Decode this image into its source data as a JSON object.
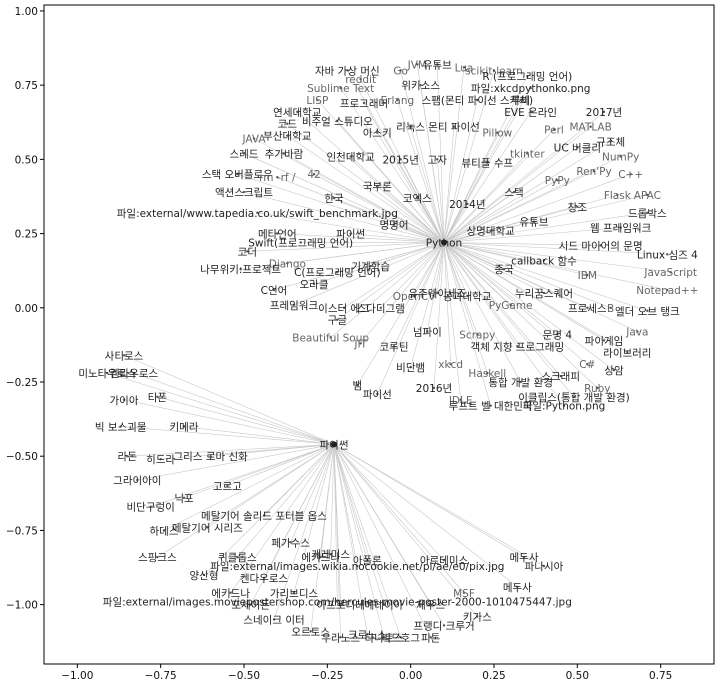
{
  "chart_data": {
    "type": "network",
    "title": "",
    "xlabel": "",
    "ylabel": "",
    "xlim": [
      -1.1,
      0.91
    ],
    "ylim": [
      -1.2,
      1.02
    ],
    "xticks": [
      -1.0,
      -0.75,
      -0.5,
      -0.25,
      0.0,
      0.25,
      0.5,
      0.75
    ],
    "yticks": [
      -1.0,
      -0.75,
      -0.5,
      -0.25,
      0.0,
      0.25,
      0.5,
      0.75,
      1.0
    ],
    "xtick_labels": [
      "−1.00",
      "−0.75",
      "−0.50",
      "−0.25",
      "0.00",
      "0.25",
      "0.50",
      "0.75"
    ],
    "ytick_labels": [
      "−1.00",
      "−0.75",
      "−0.50",
      "−0.25",
      "0.00",
      "0.25",
      "0.50",
      "0.75",
      "1.00"
    ],
    "hubs": [
      {
        "label": "Python",
        "x": 0.1,
        "y": 0.22
      },
      {
        "label": "파이썬",
        "x": -0.23,
        "y": -0.46
      }
    ],
    "nodes": [
      {
        "label": "자바 가상 머신",
        "x": -0.19,
        "y": 0.8,
        "hub": 0
      },
      {
        "label": "JVM",
        "x": 0.02,
        "y": 0.82,
        "hub": 0
      },
      {
        "label": "유튜브",
        "x": 0.08,
        "y": 0.82,
        "hub": 0
      },
      {
        "label": "Lua",
        "x": 0.16,
        "y": 0.81,
        "hub": 0
      },
      {
        "label": "reddit",
        "x": -0.15,
        "y": 0.77,
        "hub": 0
      },
      {
        "label": "Go",
        "x": -0.03,
        "y": 0.8,
        "hub": 0
      },
      {
        "label": "scikit-learn",
        "x": 0.25,
        "y": 0.8,
        "hub": 0
      },
      {
        "label": "R (프로그래밍 언어)",
        "x": 0.35,
        "y": 0.78,
        "hub": 0
      },
      {
        "label": "Sublime Text",
        "x": -0.21,
        "y": 0.74,
        "hub": 0
      },
      {
        "label": "위키소스",
        "x": 0.03,
        "y": 0.75,
        "hub": 0
      },
      {
        "label": "파일:xkcdpythonko.png",
        "x": 0.36,
        "y": 0.74,
        "hub": 0
      },
      {
        "label": "LISP",
        "x": -0.28,
        "y": 0.7,
        "hub": 0
      },
      {
        "label": "프로그래머",
        "x": -0.14,
        "y": 0.69,
        "hub": 0
      },
      {
        "label": "Erlang",
        "x": -0.04,
        "y": 0.7,
        "hub": 0
      },
      {
        "label": "스팸(몬티 파이선 스케치)",
        "x": 0.2,
        "y": 0.7,
        "hub": 0
      },
      {
        "label": "루비",
        "x": 0.33,
        "y": 0.7,
        "hub": 0
      },
      {
        "label": "연세대학교",
        "x": -0.34,
        "y": 0.66,
        "hub": 0
      },
      {
        "label": "EVE 온라인",
        "x": 0.36,
        "y": 0.66,
        "hub": 0
      },
      {
        "label": "2017년",
        "x": 0.58,
        "y": 0.66,
        "hub": 0
      },
      {
        "label": "코드",
        "x": -0.37,
        "y": 0.62,
        "hub": 0
      },
      {
        "label": "비주얼 스튜디오",
        "x": -0.22,
        "y": 0.63,
        "hub": 0
      },
      {
        "label": "MATLAB",
        "x": 0.54,
        "y": 0.61,
        "hub": 0
      },
      {
        "label": "리눅스",
        "x": 0.0,
        "y": 0.61,
        "hub": 0
      },
      {
        "label": "몬티 파이선",
        "x": 0.13,
        "y": 0.61,
        "hub": 0
      },
      {
        "label": "Perl",
        "x": 0.43,
        "y": 0.6,
        "hub": 0
      },
      {
        "label": "부산대학교",
        "x": -0.37,
        "y": 0.58,
        "hub": 0
      },
      {
        "label": "아스키",
        "x": -0.1,
        "y": 0.59,
        "hub": 0
      },
      {
        "label": "Pillow",
        "x": 0.26,
        "y": 0.59,
        "hub": 0
      },
      {
        "label": "JAVA",
        "x": -0.47,
        "y": 0.57,
        "hub": 0
      },
      {
        "label": "규조체",
        "x": 0.6,
        "y": 0.56,
        "hub": 0
      },
      {
        "label": "스레드",
        "x": -0.5,
        "y": 0.52,
        "hub": 0
      },
      {
        "label": "추가바람",
        "x": -0.38,
        "y": 0.52,
        "hub": 0
      },
      {
        "label": "인천대학교",
        "x": -0.18,
        "y": 0.51,
        "hub": 0
      },
      {
        "label": "2015년",
        "x": -0.03,
        "y": 0.5,
        "hub": 0
      },
      {
        "label": "고자",
        "x": 0.08,
        "y": 0.5,
        "hub": 0
      },
      {
        "label": "뷰티플 수프",
        "x": 0.23,
        "y": 0.49,
        "hub": 0
      },
      {
        "label": "tkinter",
        "x": 0.35,
        "y": 0.52,
        "hub": 0
      },
      {
        "label": "UC 버클리",
        "x": 0.5,
        "y": 0.54,
        "hub": 0
      },
      {
        "label": "NumPy",
        "x": 0.63,
        "y": 0.51,
        "hub": 0
      },
      {
        "label": "스택 오버플로우",
        "x": -0.52,
        "y": 0.45,
        "hub": 0
      },
      {
        "label": "rm -rf /",
        "x": -0.4,
        "y": 0.44,
        "hub": 0
      },
      {
        "label": "42",
        "x": -0.29,
        "y": 0.45,
        "hub": 0
      },
      {
        "label": "Ren'Py",
        "x": 0.55,
        "y": 0.46,
        "hub": 0
      },
      {
        "label": "C++",
        "x": 0.66,
        "y": 0.45,
        "hub": 0
      },
      {
        "label": "PyPy",
        "x": 0.44,
        "y": 0.43,
        "hub": 0
      },
      {
        "label": "액션스크립트",
        "x": -0.5,
        "y": 0.39,
        "hub": 0
      },
      {
        "label": "국부론",
        "x": -0.1,
        "y": 0.41,
        "hub": 0
      },
      {
        "label": "스택",
        "x": 0.31,
        "y": 0.39,
        "hub": 0
      },
      {
        "label": "Flask",
        "x": 0.62,
        "y": 0.38,
        "hub": 0
      },
      {
        "label": "APAC",
        "x": 0.71,
        "y": 0.38,
        "hub": 0
      },
      {
        "label": "코엑스",
        "x": 0.02,
        "y": 0.37,
        "hub": 0
      },
      {
        "label": "한국",
        "x": -0.23,
        "y": 0.37,
        "hub": 0
      },
      {
        "label": "2014년",
        "x": 0.17,
        "y": 0.35,
        "hub": 0
      },
      {
        "label": "창조",
        "x": 0.5,
        "y": 0.34,
        "hub": 0
      },
      {
        "label": "드롭박스",
        "x": 0.71,
        "y": 0.32,
        "hub": 0
      },
      {
        "label": "파일:external/www.tapedia.co.uk/swift_benchmark.jpg",
        "x": -0.46,
        "y": 0.32,
        "hub": 0
      },
      {
        "label": "유튜브",
        "x": 0.37,
        "y": 0.29,
        "hub": 0
      },
      {
        "label": "웹 프레임워크",
        "x": 0.63,
        "y": 0.27,
        "hub": 0
      },
      {
        "label": "명명어",
        "x": -0.05,
        "y": 0.28,
        "hub": 0
      },
      {
        "label": "상명대학교",
        "x": 0.24,
        "y": 0.26,
        "hub": 0
      },
      {
        "label": "파이썬",
        "x": -0.18,
        "y": 0.25,
        "hub": 0
      },
      {
        "label": "메타언어",
        "x": -0.4,
        "y": 0.25,
        "hub": 0
      },
      {
        "label": "시드 마이어의 문명",
        "x": 0.57,
        "y": 0.21,
        "hub": 0
      },
      {
        "label": "Swift(프로그래밍 언어)",
        "x": -0.33,
        "y": 0.22,
        "hub": 0
      },
      {
        "label": "코더",
        "x": -0.49,
        "y": 0.19,
        "hub": 0
      },
      {
        "label": "callback 함수",
        "x": 0.4,
        "y": 0.16,
        "hub": 0
      },
      {
        "label": "Linux 심즈 4",
        "x": 0.77,
        "y": 0.18,
        "hub": 0
      },
      {
        "label": "Django",
        "x": -0.37,
        "y": 0.15,
        "hub": 0
      },
      {
        "label": "기계학습",
        "x": -0.12,
        "y": 0.14,
        "hub": 0
      },
      {
        "label": "종국",
        "x": 0.28,
        "y": 0.13,
        "hub": 0
      },
      {
        "label": "나무위키:프로젝트",
        "x": -0.51,
        "y": 0.13,
        "hub": 0
      },
      {
        "label": "C(프로그래밍 언어)",
        "x": -0.22,
        "y": 0.12,
        "hub": 0
      },
      {
        "label": "JavaScript",
        "x": 0.78,
        "y": 0.12,
        "hub": 0
      },
      {
        "label": "IBM",
        "x": 0.53,
        "y": 0.11,
        "hub": 0
      },
      {
        "label": "오라클",
        "x": -0.29,
        "y": 0.08,
        "hub": 0
      },
      {
        "label": "C언어",
        "x": -0.41,
        "y": 0.06,
        "hub": 0
      },
      {
        "label": "Notepad++",
        "x": 0.77,
        "y": 0.06,
        "hub": 0
      },
      {
        "label": "OpenCV",
        "x": 0.01,
        "y": 0.04,
        "hub": 0
      },
      {
        "label": "유주웨이세즈",
        "x": 0.08,
        "y": 0.05,
        "hub": 0
      },
      {
        "label": "공과대학교",
        "x": 0.17,
        "y": 0.04,
        "hub": 0
      },
      {
        "label": "누리꿈스퀘어",
        "x": 0.4,
        "y": 0.05,
        "hub": 0
      },
      {
        "label": "프레임워크",
        "x": -0.35,
        "y": 0.01,
        "hub": 0
      },
      {
        "label": "이스터 에그",
        "x": -0.2,
        "y": 0.0,
        "hub": 0
      },
      {
        "label": "스다디그램",
        "x": -0.09,
        "y": 0.0,
        "hub": 0
      },
      {
        "label": "PyGame",
        "x": 0.3,
        "y": 0.01,
        "hub": 0
      },
      {
        "label": "프로세스",
        "x": 0.53,
        "y": 0.0,
        "hub": 0
      },
      {
        "label": "B",
        "x": 0.6,
        "y": 0.0,
        "hub": 0
      },
      {
        "label": "엘더 오브 탱크",
        "x": 0.71,
        "y": -0.01,
        "hub": 0
      },
      {
        "label": "구글",
        "x": -0.22,
        "y": -0.04,
        "hub": 0
      },
      {
        "label": "넘파이",
        "x": 0.05,
        "y": -0.08,
        "hub": 0
      },
      {
        "label": "Beautiful Soup",
        "x": -0.24,
        "y": -0.1,
        "hub": 0
      },
      {
        "label": "JIT",
        "x": -0.15,
        "y": -0.12,
        "hub": 0
      },
      {
        "label": "Scrapy",
        "x": 0.2,
        "y": -0.09,
        "hub": 0
      },
      {
        "label": "문명 4",
        "x": 0.44,
        "y": -0.09,
        "hub": 0
      },
      {
        "label": "파이게임",
        "x": 0.58,
        "y": -0.11,
        "hub": 0
      },
      {
        "label": "Java",
        "x": 0.68,
        "y": -0.08,
        "hub": 0
      },
      {
        "label": "코루틴",
        "x": -0.05,
        "y": -0.13,
        "hub": 0
      },
      {
        "label": "객체 지향 프로그래밍",
        "x": 0.32,
        "y": -0.13,
        "hub": 0
      },
      {
        "label": "라이브러리",
        "x": 0.65,
        "y": -0.15,
        "hub": 0
      },
      {
        "label": "비단뱀",
        "x": 0.0,
        "y": -0.2,
        "hub": 0
      },
      {
        "label": "xkcd",
        "x": 0.12,
        "y": -0.19,
        "hub": 0
      },
      {
        "label": "Haskell",
        "x": 0.23,
        "y": -0.22,
        "hub": 0
      },
      {
        "label": "C#",
        "x": 0.53,
        "y": -0.19,
        "hub": 0
      },
      {
        "label": "상암",
        "x": 0.61,
        "y": -0.21,
        "hub": 0
      },
      {
        "label": "통합 개발 환경",
        "x": 0.33,
        "y": -0.25,
        "hub": 0
      },
      {
        "label": "스크래피",
        "x": 0.45,
        "y": -0.23,
        "hub": 0
      },
      {
        "label": "뱀",
        "x": -0.16,
        "y": -0.26,
        "hub": 0
      },
      {
        "label": "파이선",
        "x": -0.1,
        "y": -0.29,
        "hub": 0
      },
      {
        "label": "2016년",
        "x": 0.07,
        "y": -0.27,
        "hub": 0
      },
      {
        "label": "Ruby",
        "x": 0.56,
        "y": -0.27,
        "hub": 0
      },
      {
        "label": "IDLE",
        "x": 0.15,
        "y": -0.31,
        "hub": 0
      },
      {
        "label": "이클립스(통합 개발 환경)",
        "x": 0.49,
        "y": -0.3,
        "hub": 0
      },
      {
        "label": "루프트 벨 대한민국",
        "x": 0.24,
        "y": -0.33,
        "hub": 0
      },
      {
        "label": "파일:Python.png",
        "x": 0.46,
        "y": -0.33,
        "hub": 0
      },
      {
        "label": "사티로스",
        "x": -0.86,
        "y": -0.16,
        "hub": 1
      },
      {
        "label": "미노타우로스",
        "x": -0.91,
        "y": -0.22,
        "hub": 1
      },
      {
        "label": "켄타우로스",
        "x": -0.83,
        "y": -0.22,
        "hub": 1
      },
      {
        "label": "가이아",
        "x": -0.86,
        "y": -0.31,
        "hub": 1
      },
      {
        "label": "티폰",
        "x": -0.76,
        "y": -0.3,
        "hub": 1
      },
      {
        "label": "빅 보스괴물",
        "x": -0.87,
        "y": -0.4,
        "hub": 1
      },
      {
        "label": "키메라",
        "x": -0.68,
        "y": -0.4,
        "hub": 1
      },
      {
        "label": "라돈",
        "x": -0.85,
        "y": -0.5,
        "hub": 1
      },
      {
        "label": "히드라",
        "x": -0.75,
        "y": -0.51,
        "hub": 1
      },
      {
        "label": "그리스 로마 신화",
        "x": -0.6,
        "y": -0.5,
        "hub": 1
      },
      {
        "label": "그라이아이",
        "x": -0.82,
        "y": -0.58,
        "hub": 1
      },
      {
        "label": "고르고",
        "x": -0.55,
        "y": -0.6,
        "hub": 1
      },
      {
        "label": "닉포",
        "x": -0.68,
        "y": -0.64,
        "hub": 1
      },
      {
        "label": "비단구렁이",
        "x": -0.78,
        "y": -0.67,
        "hub": 1
      },
      {
        "label": "메탈기어 솔리드 포터블 옵스",
        "x": -0.44,
        "y": -0.7,
        "hub": 1
      },
      {
        "label": "하데스",
        "x": -0.74,
        "y": -0.75,
        "hub": 1
      },
      {
        "label": "메탈기어 시리즈",
        "x": -0.61,
        "y": -0.74,
        "hub": 1
      },
      {
        "label": "페가수스",
        "x": -0.36,
        "y": -0.79,
        "hub": 1
      },
      {
        "label": "스핑크스",
        "x": -0.76,
        "y": -0.84,
        "hub": 1
      },
      {
        "label": "퀴클롭스",
        "x": -0.52,
        "y": -0.84,
        "hub": 1
      },
      {
        "label": "에키드나",
        "x": -0.27,
        "y": -0.84,
        "hub": 1
      },
      {
        "label": "게레미스",
        "x": -0.24,
        "y": -0.83,
        "hub": 1
      },
      {
        "label": "아폴론",
        "x": -0.13,
        "y": -0.85,
        "hub": 1
      },
      {
        "label": "파일:external/images.wikia.nocookie.net/pi/ae/e0/pix.jpg",
        "x": -0.16,
        "y": -0.87,
        "hub": 1
      },
      {
        "label": "아르테미스",
        "x": 0.1,
        "y": -0.85,
        "hub": 1
      },
      {
        "label": "메두사",
        "x": 0.34,
        "y": -0.84,
        "hub": 1
      },
      {
        "label": "파나시아",
        "x": 0.4,
        "y": -0.87,
        "hub": 1
      },
      {
        "label": "양산형",
        "x": -0.62,
        "y": -0.9,
        "hub": 1
      },
      {
        "label": "켄다우로스",
        "x": -0.44,
        "y": -0.91,
        "hub": 1
      },
      {
        "label": "메두사",
        "x": 0.32,
        "y": -0.94,
        "hub": 1
      },
      {
        "label": "가리브디스",
        "x": -0.35,
        "y": -0.96,
        "hub": 1
      },
      {
        "label": "에키드나",
        "x": -0.54,
        "y": -0.96,
        "hub": 1
      },
      {
        "label": "MSF",
        "x": 0.16,
        "y": -0.96,
        "hub": 1
      },
      {
        "label": "파일:external/images.moviepostershop.com/hercules-movie-poster-2000-1010475447.jpg",
        "x": -0.22,
        "y": -0.99,
        "hub": 1
      },
      {
        "label": "포세이돈",
        "x": -0.48,
        "y": -1.0,
        "hub": 1
      },
      {
        "label": "아프로디테",
        "x": -0.21,
        "y": -1.0,
        "hub": 1
      },
      {
        "label": "메데이아",
        "x": -0.08,
        "y": -1.0,
        "hub": 1
      },
      {
        "label": "제우스",
        "x": 0.06,
        "y": -1.0,
        "hub": 1
      },
      {
        "label": "스네이크 이터",
        "x": -0.41,
        "y": -1.05,
        "hub": 1
      },
      {
        "label": "키가스",
        "x": 0.2,
        "y": -1.04,
        "hub": 1
      },
      {
        "label": "프랭디 크루거",
        "x": 0.1,
        "y": -1.07,
        "hub": 1
      },
      {
        "label": "오르토스",
        "x": -0.3,
        "y": -1.09,
        "hub": 1
      },
      {
        "label": "크로노스",
        "x": -0.13,
        "y": -1.1,
        "hub": 1
      },
      {
        "label": "우라노스",
        "x": -0.21,
        "y": -1.11,
        "hub": 1
      },
      {
        "label": "니드호그",
        "x": -0.03,
        "y": -1.11,
        "hub": 1
      },
      {
        "label": "피톤",
        "x": 0.06,
        "y": -1.11,
        "hub": 1
      },
      {
        "label": "타나토스",
        "x": -0.08,
        "y": -1.11,
        "hub": 1
      }
    ]
  }
}
